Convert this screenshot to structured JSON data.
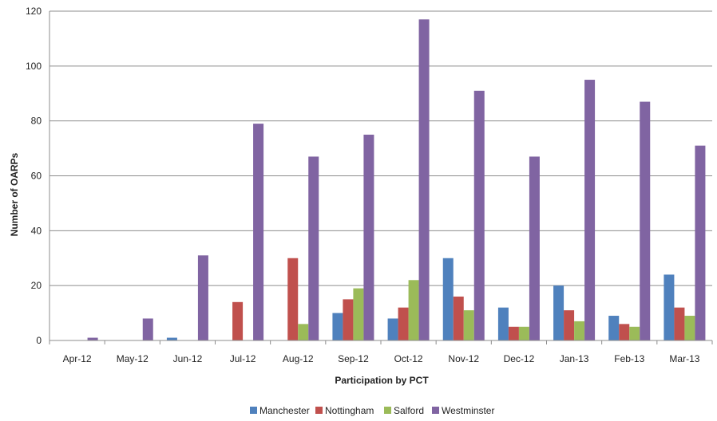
{
  "chart_data": {
    "type": "bar",
    "xlabel": "Participation by PCT",
    "ylabel": "Number of OARPs",
    "ylim": [
      0,
      120
    ],
    "yticks": [
      0,
      20,
      40,
      60,
      80,
      100,
      120
    ],
    "grid": "horizontal",
    "legend_position": "bottom",
    "categories": [
      "Apr-12",
      "May-12",
      "Jun-12",
      "Jul-12",
      "Aug-12",
      "Sep-12",
      "Oct-12",
      "Nov-12",
      "Dec-12",
      "Jan-13",
      "Feb-13",
      "Mar-13"
    ],
    "series": [
      {
        "name": "Manchester",
        "color": "#4f81bd",
        "values": [
          0,
          0,
          1,
          0,
          0,
          10,
          8,
          30,
          12,
          20,
          9,
          24
        ]
      },
      {
        "name": "Nottingham",
        "color": "#c0504d",
        "values": [
          0,
          0,
          0,
          14,
          30,
          15,
          12,
          16,
          5,
          11,
          6,
          12
        ]
      },
      {
        "name": "Salford",
        "color": "#9bbb59",
        "values": [
          0,
          0,
          0,
          0,
          6,
          19,
          22,
          11,
          5,
          7,
          5,
          9
        ]
      },
      {
        "name": "Westminster",
        "color": "#8064a2",
        "values": [
          1,
          8,
          31,
          79,
          67,
          75,
          117,
          91,
          67,
          95,
          87,
          71
        ]
      }
    ]
  }
}
